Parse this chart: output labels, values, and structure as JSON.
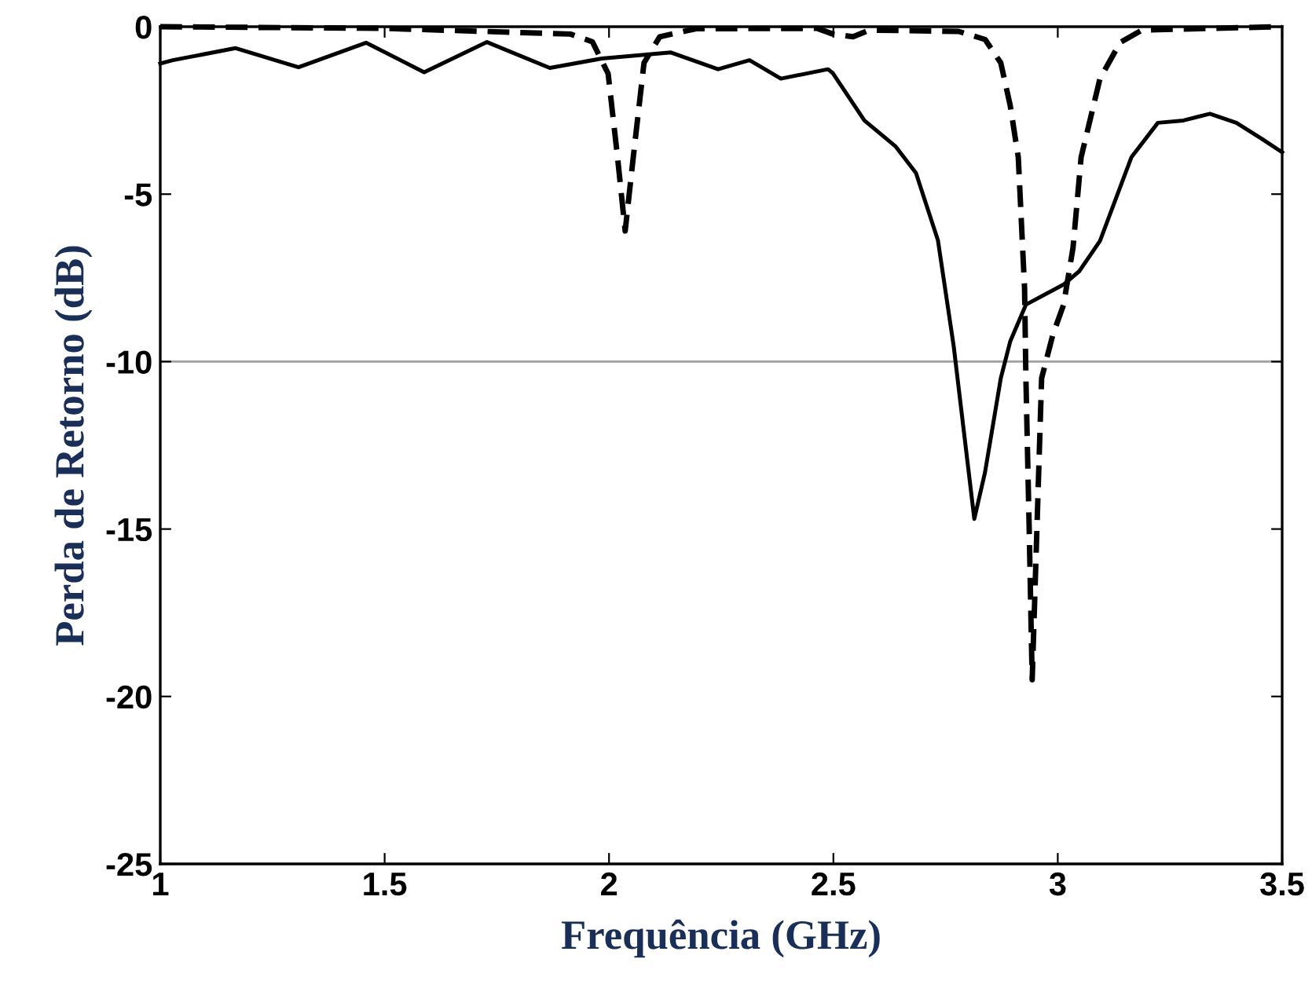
{
  "chart_data": {
    "type": "line",
    "xlabel": "Frequência (GHz)",
    "ylabel": "Perda de Retorno (dB)",
    "xlim": [
      1,
      3.5
    ],
    "xticks": [
      1,
      1.5,
      2,
      2.5,
      3,
      3.5
    ],
    "ylim": [
      -25,
      0
    ],
    "yticks": [
      -25,
      -20,
      -15,
      -10,
      -5,
      0
    ],
    "grid": false,
    "ref_lines": [
      {
        "axis": "y",
        "value": -10,
        "color": "#a0a0a0"
      }
    ],
    "series": [
      {
        "color": "#000000",
        "line_style": "solid",
        "x": [
          1.0,
          1.028,
          1.168,
          1.308,
          1.459,
          1.588,
          1.728,
          1.868,
          1.984,
          2.138,
          2.243,
          2.313,
          2.383,
          2.488,
          2.499,
          2.569,
          2.639,
          2.684,
          2.733,
          2.768,
          2.814,
          2.838,
          2.873,
          2.894,
          2.929,
          3.013,
          3.048,
          3.094,
          3.164,
          3.223,
          3.28,
          3.339,
          3.398,
          3.455,
          3.5
        ],
        "values": [
          -1.1,
          -1.0,
          -0.64,
          -1.21,
          -0.48,
          -1.36,
          -0.46,
          -1.23,
          -0.95,
          -0.77,
          -1.27,
          -1.0,
          -1.55,
          -1.27,
          -1.39,
          -2.8,
          -3.58,
          -4.37,
          -6.38,
          -9.53,
          -14.7,
          -13.3,
          -10.5,
          -9.4,
          -8.3,
          -7.7,
          -7.3,
          -6.4,
          -3.9,
          -2.87,
          -2.8,
          -2.6,
          -2.87,
          -3.35,
          -3.75
        ]
      },
      {
        "color": "#000000",
        "line_style": "dashed",
        "x": [
          1.0,
          1.5,
          1.914,
          1.963,
          1.998,
          2.019,
          2.036,
          2.054,
          2.078,
          2.113,
          2.194,
          2.464,
          2.499,
          2.544,
          2.58,
          2.779,
          2.838,
          2.873,
          2.894,
          2.912,
          2.926,
          2.929,
          2.936,
          2.943,
          2.954,
          2.964,
          2.989,
          3.013,
          3.034,
          3.052,
          3.094,
          3.139,
          3.188,
          3.5
        ],
        "values": [
          0,
          -0.05,
          -0.22,
          -0.45,
          -1.4,
          -3.9,
          -6.1,
          -3.9,
          -1.08,
          -0.3,
          -0.06,
          -0.05,
          -0.22,
          -0.3,
          -0.1,
          -0.14,
          -0.38,
          -1.08,
          -2.35,
          -3.9,
          -7.8,
          -10.5,
          -14.8,
          -19.5,
          -14.8,
          -10.5,
          -9.2,
          -8.3,
          -6.6,
          -3.9,
          -1.55,
          -0.47,
          -0.1,
          0
        ]
      }
    ]
  }
}
